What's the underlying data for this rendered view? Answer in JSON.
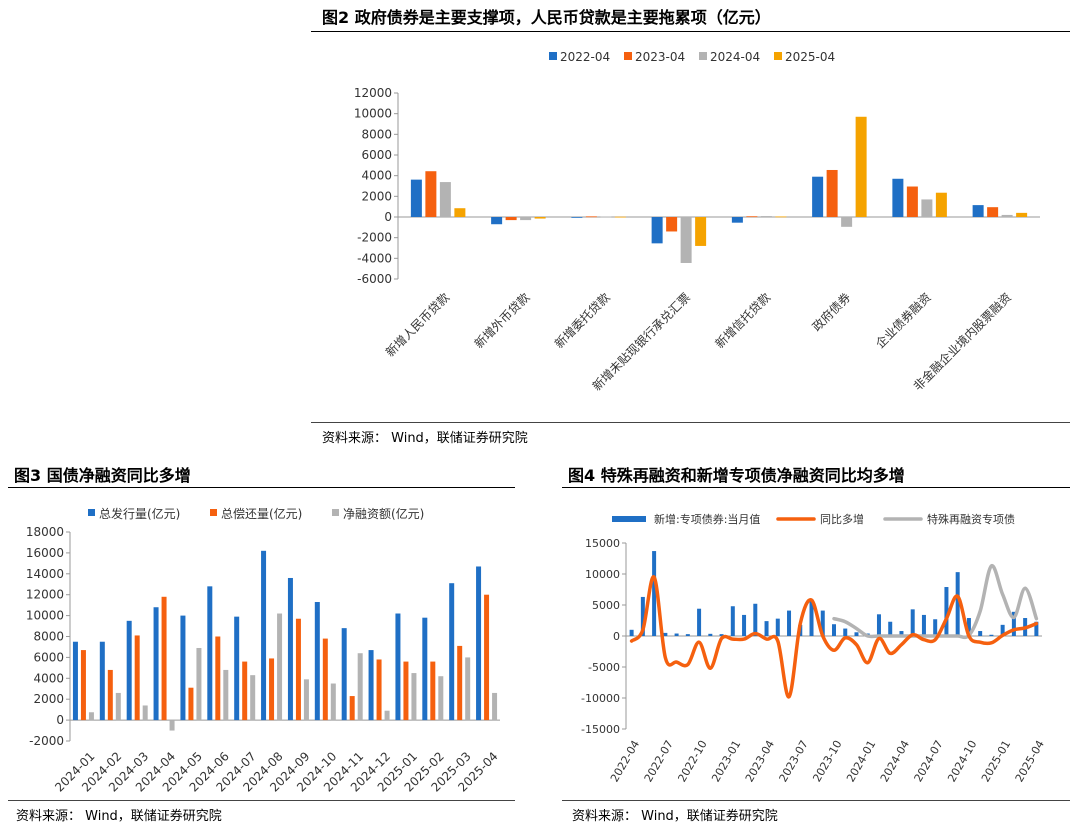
{
  "fig2": {
    "title": "图2  政府债券是主要支撑项，人民币贷款是主要拖累项（亿元）",
    "source": "资料来源：  Wind，联储证券研究院",
    "chart_data": {
      "type": "bar",
      "categories": [
        "新增人民币贷款",
        "新增外币贷款",
        "新增委托贷款",
        "新增未贴现银行承兑汇票",
        "新增信托贷款",
        "政府债券",
        "企业债券融资",
        "非金融企业境内股票融资"
      ],
      "series": [
        {
          "name": "2022-04",
          "color": "#1f6fc5",
          "values": [
            3616,
            -700,
            -50,
            -2550,
            -550,
            3900,
            3700,
            1150
          ]
        },
        {
          "name": "2023-04",
          "color": "#f5600f",
          "values": [
            4431,
            -300,
            60,
            -1400,
            70,
            4550,
            2950,
            950
          ]
        },
        {
          "name": "2024-04",
          "color": "#b3b3b3",
          "values": [
            3380,
            -300,
            50,
            -4450,
            90,
            -950,
            1700,
            200
          ]
        },
        {
          "name": "2025-04",
          "color": "#f5a300",
          "values": [
            850,
            -150,
            30,
            -2800,
            50,
            9700,
            2350,
            400
          ]
        }
      ],
      "ylim": [
        -6000,
        12000
      ],
      "yticks": [
        -6000,
        -4000,
        -2000,
        0,
        2000,
        4000,
        6000,
        8000,
        10000,
        12000
      ],
      "legend": "top"
    }
  },
  "fig3": {
    "title": "图3   国债净融资同比多增",
    "source": "资料来源：  Wind，联储证券研究院",
    "chart_data": {
      "type": "bar",
      "categories": [
        "2024-01",
        "2024-02",
        "2024-03",
        "2024-04",
        "2024-05",
        "2024-06",
        "2024-07",
        "2024-08",
        "2024-09",
        "2024-10",
        "2024-11",
        "2024-12",
        "2025-01",
        "2025-02",
        "2025-03",
        "2025-04"
      ],
      "series": [
        {
          "name": "总发行量(亿元)",
          "color": "#1f6fc5",
          "values": [
            7500,
            7500,
            9500,
            10800,
            10000,
            12800,
            9900,
            16200,
            13600,
            11300,
            8800,
            6700,
            10200,
            9800,
            13100,
            14700
          ]
        },
        {
          "name": "总偿还量(亿元)",
          "color": "#f5600f",
          "values": [
            6700,
            4800,
            8100,
            11800,
            3100,
            8000,
            5600,
            5900,
            9700,
            7800,
            2300,
            5800,
            5600,
            5600,
            7100,
            12000
          ]
        },
        {
          "name": "净融资额(亿元)",
          "color": "#b3b3b3",
          "values": [
            750,
            2600,
            1400,
            -1000,
            6900,
            4800,
            4300,
            10200,
            3900,
            3500,
            6400,
            900,
            4500,
            4200,
            6000,
            2600
          ]
        }
      ],
      "ylim": [
        -2000,
        18000
      ],
      "yticks": [
        -2000,
        0,
        2000,
        4000,
        6000,
        8000,
        10000,
        12000,
        14000,
        16000,
        18000
      ],
      "legend": "top"
    }
  },
  "fig4": {
    "title": "图4   特殊再融资和新增专项债净融资同比均多增",
    "source": "资料来源：  Wind，联储证券研究院",
    "chart_data": {
      "type": "bar+line",
      "x_start": "2022-04",
      "xticks": [
        "2022-04",
        "2022-07",
        "2022-10",
        "2023-01",
        "2023-04",
        "2023-07",
        "2023-10",
        "2024-01",
        "2024-04",
        "2024-07",
        "2024-10",
        "2025-01",
        "2025-04"
      ],
      "ylim": [
        -15000,
        15000
      ],
      "yticks": [
        -15000,
        -10000,
        -5000,
        0,
        5000,
        10000,
        15000
      ],
      "legend": "top",
      "series": [
        {
          "name": "新增:专项债券:当月值",
          "type": "bar",
          "color": "#1f6fc5",
          "values": [
            1000,
            6300,
            13700,
            500,
            400,
            300,
            4400,
            350,
            300,
            4800,
            3400,
            5200,
            2400,
            2800,
            4100,
            1800,
            5900,
            4100,
            1900,
            1200,
            600,
            400,
            3500,
            2300,
            800,
            4300,
            3400,
            2700,
            7900,
            10300,
            2900,
            800,
            200,
            1800,
            3900,
            2900,
            2300
          ]
        },
        {
          "name": "同比多增",
          "type": "line",
          "color": "#f5600f",
          "values": [
            -800,
            1000,
            9500,
            -3500,
            -4200,
            -4600,
            -1000,
            -5200,
            -400,
            -500,
            -500,
            400,
            -500,
            -800,
            -9800,
            2000,
            5800,
            0,
            -2300,
            -300,
            -1400,
            -4300,
            -400,
            -2800,
            -1400,
            200,
            -600,
            -600,
            2800,
            6400,
            0,
            -1000,
            -1100,
            100,
            1000,
            1300,
            2000
          ]
        },
        {
          "name": "特殊再融资专项债",
          "type": "line",
          "color": "#b3b3b3",
          "start_index": 18,
          "values": [
            2800,
            2300,
            1200,
            0,
            0,
            0,
            0,
            0,
            0,
            0,
            0,
            0,
            100,
            4000,
            11300,
            6700,
            3000,
            7700,
            2800
          ]
        }
      ]
    }
  }
}
